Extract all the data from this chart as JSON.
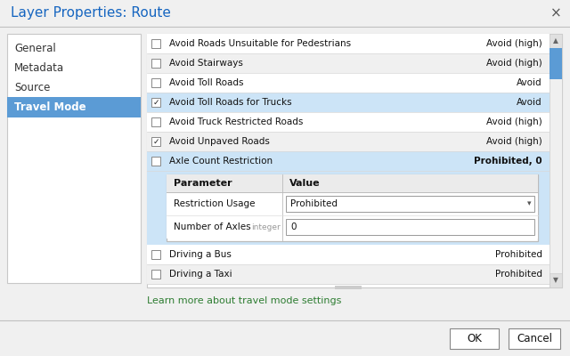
{
  "title": "Layer Properties: Route",
  "bg_color": "#f0f0f0",
  "selected_item_bg": "#5b9bd5",
  "selected_item_fg": "#ffffff",
  "highlight_row_bg": "#cce4f7",
  "alt_row_bg": "#f0f0f0",
  "white_row_bg": "#ffffff",
  "nav_items": [
    "General",
    "Metadata",
    "Source",
    "Travel Mode"
  ],
  "selected_nav": "Travel Mode",
  "table_rows": [
    {
      "check": false,
      "label": "Avoid Roads Unsuitable for Pedestrians",
      "value": "Avoid (high)",
      "highlight": false
    },
    {
      "check": false,
      "label": "Avoid Stairways",
      "value": "Avoid (high)",
      "highlight": false
    },
    {
      "check": false,
      "label": "Avoid Toll Roads",
      "value": "Avoid",
      "highlight": false
    },
    {
      "check": true,
      "label": "Avoid Toll Roads for Trucks",
      "value": "Avoid",
      "highlight": true
    },
    {
      "check": false,
      "label": "Avoid Truck Restricted Roads",
      "value": "Avoid (high)",
      "highlight": false
    },
    {
      "check": true,
      "label": "Avoid Unpaved Roads",
      "value": "Avoid (high)",
      "highlight": false
    },
    {
      "check": false,
      "label": "Axle Count Restriction",
      "value": "Prohibited, 0",
      "highlight": true,
      "bold_value": true
    }
  ],
  "bottom_rows": [
    {
      "check": false,
      "label": "Driving a Bus",
      "value": "Prohibited"
    },
    {
      "check": false,
      "label": "Driving a Taxi",
      "value": "Prohibited"
    }
  ],
  "link_text": "Learn more about travel mode settings",
  "link_color": "#2e7d32",
  "ok_label": "OK",
  "cancel_label": "Cancel",
  "scrollbar_color": "#5b9bd5",
  "title_color": "#1565c0"
}
